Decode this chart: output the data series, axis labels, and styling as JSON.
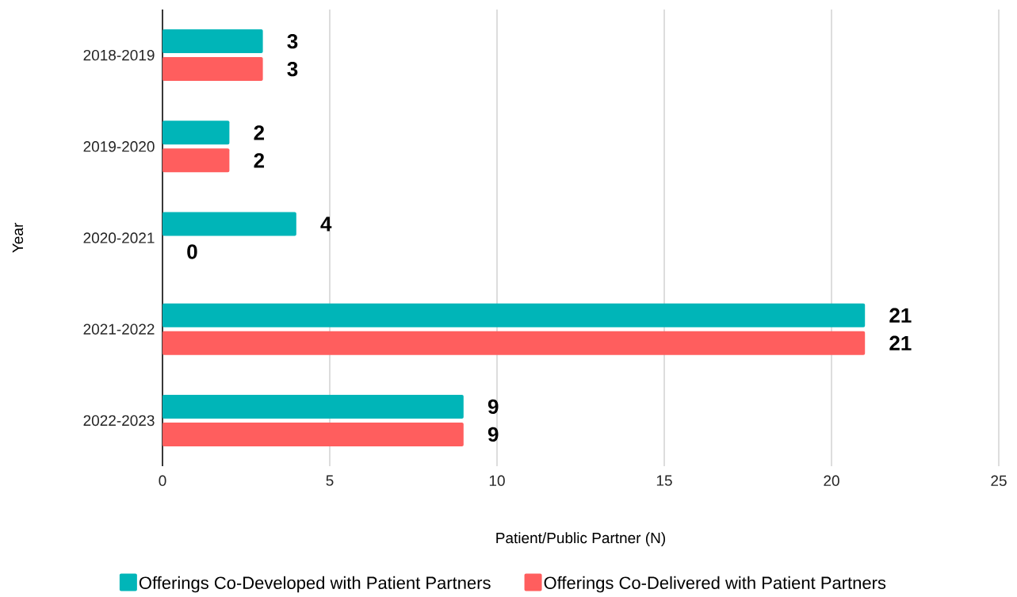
{
  "chart_data": {
    "type": "bar",
    "orientation": "horizontal",
    "xlabel": "Patient/Public Partner (N)",
    "ylabel": "Year",
    "categories": [
      "2018-2019",
      "2019-2020",
      "2020-2021",
      "2021-2022",
      "2022-2023"
    ],
    "series": [
      {
        "name": "Offerings Co-Developed with Patient Partners",
        "color": "#00b5b8",
        "values": [
          3,
          2,
          4,
          21,
          9
        ]
      },
      {
        "name": "Offerings Co-Delivered with Patient Partners",
        "color": "#ff5e5e",
        "values": [
          3,
          2,
          0,
          21,
          9
        ]
      }
    ],
    "xlim": [
      0,
      25
    ],
    "xticks": [
      0,
      5,
      10,
      15,
      20,
      25
    ],
    "grid": "x",
    "legend": "bottom",
    "data_labels": true
  }
}
